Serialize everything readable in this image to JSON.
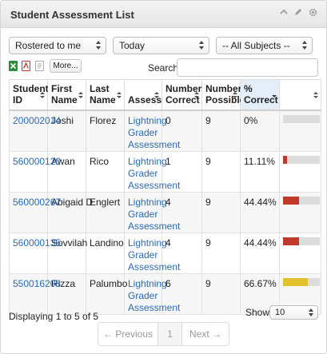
{
  "header": {
    "title": "Student Assessment List",
    "icons": [
      "chevron-up-icon",
      "pencil-icon",
      "gear-icon"
    ]
  },
  "filters": {
    "roster": "Rostered to me",
    "date": "Today",
    "subject": "-- All Subjects --"
  },
  "toolbar": {
    "more_label": "More...",
    "export_icons": [
      "excel-icon",
      "pdf-icon",
      "document-icon"
    ]
  },
  "search": {
    "label": "Search",
    "value": "",
    "placeholder": ""
  },
  "table": {
    "headers": [
      {
        "line1": "Student",
        "line2": "ID"
      },
      {
        "line1": "First",
        "line2": "Name"
      },
      {
        "line1": "Last",
        "line2": "Name"
      },
      {
        "line1": "",
        "line2": "Assessment"
      },
      {
        "line1": "Number",
        "line2": "Correct"
      },
      {
        "line1": "Number",
        "line2": "Possible"
      },
      {
        "line1": "%",
        "line2": "Correct"
      },
      {
        "line1": "",
        "line2": ""
      }
    ],
    "sorted_column": 6,
    "rows": [
      {
        "id": "200002014",
        "first": "Joshi",
        "last": "Florez",
        "assessment": [
          "Lightning",
          "Grader",
          "Assessment"
        ],
        "correct": "0",
        "possible": "9",
        "pct": "0%",
        "fraction": 0.0,
        "bar_color": "#c0392b"
      },
      {
        "id": "560000120",
        "first": "Awan",
        "last": "Rico",
        "assessment": [
          "Lightning",
          "Grader",
          "Assessment"
        ],
        "correct": "1",
        "possible": "9",
        "pct": "11.11%",
        "fraction": 0.1111,
        "bar_color": "#c0392b"
      },
      {
        "id": "560000267",
        "first": "Abigaid D",
        "last": "Englert",
        "assessment": [
          "Lightning",
          "Grader",
          "Assessment"
        ],
        "correct": "4",
        "possible": "9",
        "pct": "44.44%",
        "fraction": 0.4444,
        "bar_color": "#c0392b"
      },
      {
        "id": "560000135",
        "first": "Sovvilah",
        "last": "Landino",
        "assessment": [
          "Lightning",
          "Grader",
          "Assessment"
        ],
        "correct": "4",
        "possible": "9",
        "pct": "44.44%",
        "fraction": 0.4444,
        "bar_color": "#c0392b"
      },
      {
        "id": "550016208",
        "first": "Rizza",
        "last": "Palumbo",
        "assessment": [
          "Lightning",
          "Grader",
          "Assessment"
        ],
        "correct": "6",
        "possible": "9",
        "pct": "66.67%",
        "fraction": 0.6667,
        "bar_color": "#e3c12b"
      }
    ]
  },
  "footer": {
    "info": "Displaying 1 to 5 of 5",
    "show_label": "Show",
    "page_size": "10",
    "prev_label": "← Previous",
    "page": "1",
    "next_label": "Next →"
  },
  "colors": {
    "link": "#2a6bb5",
    "sorted_header": "#e4eef8",
    "bar_low": "#c0392b",
    "bar_mid": "#e3c12b",
    "bar_track": "#dcdcdc"
  }
}
